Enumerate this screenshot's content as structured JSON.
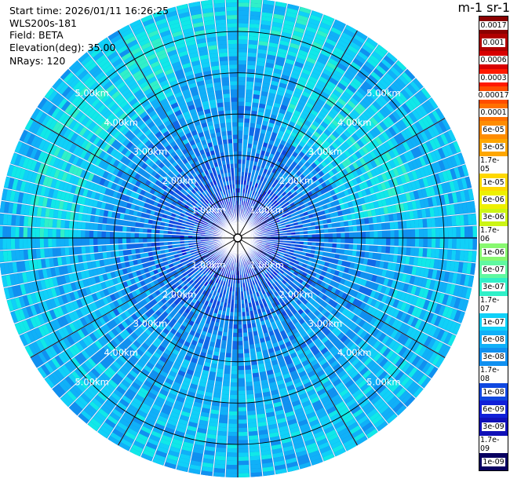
{
  "info": {
    "start_time": "Start time: 2026/01/11 16:26:25",
    "instrument": "WLS200s-181",
    "field": "Field: BETA",
    "elevation": "Elevation(deg): 35.00",
    "nrays": "NRays: 120"
  },
  "colorbar": {
    "title": "m-1 sr-1",
    "labels": [
      "0.0017",
      "0.001",
      "0.0006",
      "0.0003",
      "0.00017",
      "0.0001",
      "6e-05",
      "3e-05",
      "1.7e-05",
      "1e-05",
      "6e-06",
      "3e-06",
      "1.7e-06",
      "1e-06",
      "6e-07",
      "3e-07",
      "1.7e-07",
      "1e-07",
      "6e-08",
      "3e-08",
      "1.7e-08",
      "1e-08",
      "6e-09",
      "3e-09",
      "1.7e-09",
      "1e-09"
    ],
    "colors": [
      "#8b0000",
      "#b00000",
      "#d80000",
      "#ff1a00",
      "#ff4d00",
      "#ff7000",
      "#ff8c00",
      "#ffa600",
      "#ffbf00",
      "#ffd800",
      "#eef000",
      "#ccf515",
      "#aaf840",
      "#88f870",
      "#60f8a0",
      "#30f0c8",
      "#10e8e8",
      "#10d0f8",
      "#10b0f8",
      "#1090f0",
      "#1068e8",
      "#1048e0",
      "#1020d8",
      "#1010b8",
      "#100898",
      "#080060"
    ]
  },
  "chart_data": {
    "type": "heatmap",
    "projection": "polar (PPI scan)",
    "title": "",
    "nrays": 120,
    "elevation_deg": 35.0,
    "range_ring_labels": [
      "1.00km",
      "2.00km",
      "3.00km",
      "4.00km",
      "5.00km"
    ],
    "range_rings_km": [
      1,
      2,
      3,
      4,
      5
    ],
    "max_range_km": 5.8,
    "value_range": [
      1e-09,
      0.0017
    ],
    "color_scale": "log",
    "description_values": {
      "near_range_0_1km": "3e-09 to 1e-08",
      "mid_range_1_3km": "1.7e-08 to 6e-08",
      "far_range_3_5.8km": "3e-08 to 1.7e-07"
    }
  }
}
